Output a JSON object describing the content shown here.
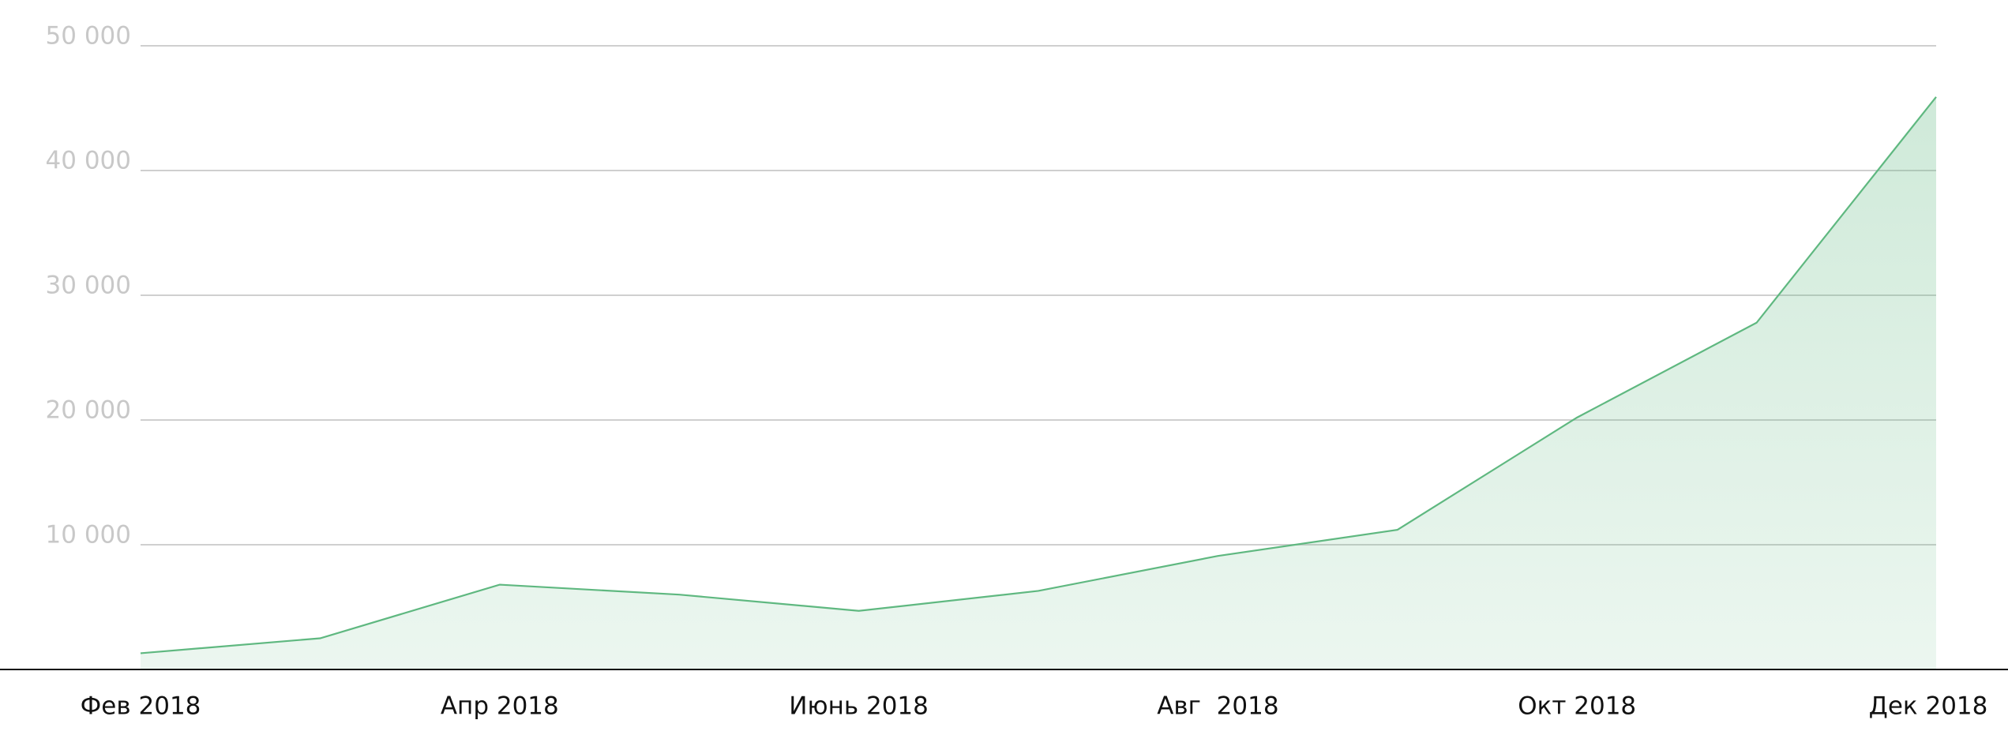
{
  "chart_data": {
    "type": "area",
    "categories": [
      "Фев 2018",
      null,
      "Апр 2018",
      null,
      "Июнь 2018",
      null,
      "Авг  2018",
      null,
      "Окт 2018",
      null,
      "Дек 2018"
    ],
    "series": [
      {
        "color": "#5fb880",
        "values": [
          1300,
          2500,
          6800,
          6000,
          4700,
          6300,
          9100,
          11200,
          20200,
          27800,
          45900
        ]
      }
    ],
    "ylim": [
      0,
      50000
    ],
    "yticks": [
      {
        "value": 10000,
        "label": "10 000"
      },
      {
        "value": 20000,
        "label": "20 000"
      },
      {
        "value": 30000,
        "label": "30 000"
      },
      {
        "value": 40000,
        "label": "40 000"
      },
      {
        "value": 50000,
        "label": "50 000"
      }
    ],
    "grid": true
  }
}
